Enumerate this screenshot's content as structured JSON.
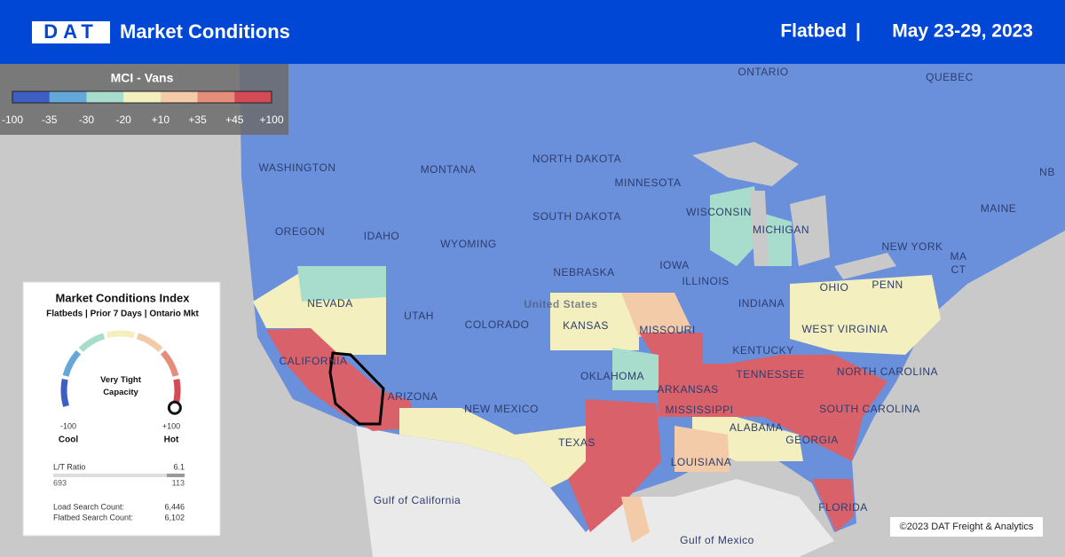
{
  "header": {
    "logo": "DAT",
    "title": "Market Conditions",
    "mode": "Flatbed",
    "separator": "|",
    "date": "May 23-29, 2023"
  },
  "legend": {
    "title": "MCI - Vans",
    "ticks": [
      "-100",
      "-35",
      "-30",
      "-20",
      "+10",
      "+35",
      "+45",
      "+100"
    ],
    "colors": [
      "#3d5fc4",
      "#63a8d8",
      "#a8dccd",
      "#f4efbe",
      "#f3cba8",
      "#e58d7b",
      "#d24b55"
    ]
  },
  "panel": {
    "title": "Market Conditions Index",
    "subtitle": "Flatbeds | Prior 7 Days | Ontario Mkt",
    "gauge_label": "Very Tight Capacity",
    "min": "-100",
    "min_label": "Cool",
    "max": "+100",
    "max_label": "Hot",
    "ratio_label": "L/T Ratio",
    "ratio": "6.1",
    "loads": "693",
    "trucks": "113",
    "counts": [
      {
        "label": "Load Search Count:",
        "value": "6,446"
      },
      {
        "label": "Flatbed Search Count:",
        "value": "6,102"
      }
    ]
  },
  "map": {
    "labels": [
      "ONTARIO",
      "QUEBEC",
      "WASHINGTON",
      "MONTANA",
      "NORTH DAKOTA",
      "MINNESOTA",
      "OREGON",
      "IDAHO",
      "SOUTH DAKOTA",
      "WISCONSIN",
      "MICHIGAN",
      "WYOMING",
      "NEBRASKA",
      "IOWA",
      "NEVADA",
      "UTAH",
      "COLORADO",
      "KANSAS",
      "MISSOURI",
      "ILLINOIS",
      "INDIANA",
      "OHIO",
      "PENN",
      "NEW YORK",
      "MAINE",
      "MA",
      "CT",
      "NB",
      "CALIFORNIA",
      "ARIZONA",
      "NEW MEXICO",
      "OKLAHOMA",
      "ARKANSAS",
      "TENNESSEE",
      "KENTUCKY",
      "WEST VIRGINIA",
      "NORTH CAROLINA",
      "SOUTH CAROLINA",
      "MISSISSIPPI",
      "ALABAMA",
      "GEORGIA",
      "TEXAS",
      "LOUISIANA",
      "FLORIDA",
      "United States",
      "Gulf of California",
      "Gulf of Mexico"
    ]
  },
  "footer": {
    "copyright": "©2023 DAT Freight & Analytics"
  }
}
